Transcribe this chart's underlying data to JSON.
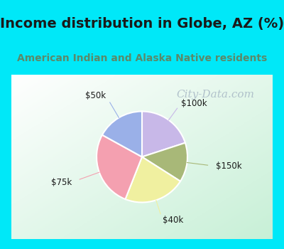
{
  "title": "Income distribution in Globe, AZ (%)",
  "subtitle": "American Indian and Alaska Native residents",
  "title_color": "#1a1a1a",
  "subtitle_color": "#5a8a6a",
  "background_color": "#00e8f8",
  "chart_bg_left": "#f5fff5",
  "chart_bg_right": "#c8f0d8",
  "slices": [
    {
      "label": "$100k",
      "value": 20,
      "color": "#c8b8e8"
    },
    {
      "label": "$150k",
      "value": 14,
      "color": "#a8b878"
    },
    {
      "label": "$40k",
      "value": 22,
      "color": "#f0f0a0"
    },
    {
      "label": "$75k",
      "value": 27,
      "color": "#f4a0b0"
    },
    {
      "label": "$50k",
      "value": 17,
      "color": "#9ab0e8"
    }
  ],
  "start_angle": 90,
  "wedge_edge_color": "#ffffff",
  "wedge_linewidth": 1.5,
  "label_fontsize": 8.5,
  "label_color": "#1a1a1a",
  "watermark": "City-Data.com",
  "watermark_color": "#a0b0c0",
  "watermark_fontsize": 11,
  "title_fontsize": 14,
  "subtitle_fontsize": 10
}
